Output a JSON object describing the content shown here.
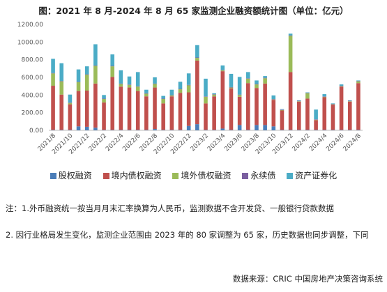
{
  "chart_data": {
    "type": "bar",
    "stacked": true,
    "title": "图：2021 年 8 月-2024 年 8 月 65 家监测企业融资额统计图（单位：亿元）",
    "xlabel": "",
    "ylabel": "",
    "ylim": [
      0,
      1200
    ],
    "yticks": [
      "0.00",
      "200.00",
      "400.00",
      "600.00",
      "800.00",
      "1000.00",
      "1200.00"
    ],
    "grid": false,
    "legend_position": "bottom",
    "categories": [
      "2021/8",
      "2021/9",
      "2021/10",
      "2021/11",
      "2021/12",
      "2022/1",
      "2022/2",
      "2022/3",
      "2022/4",
      "2022/5",
      "2022/6",
      "2022/7",
      "2022/8",
      "2022/9",
      "2022/10",
      "2022/11",
      "2022/12",
      "2023/1",
      "2023/2",
      "2023/3",
      "2023/4",
      "2023/5",
      "2023/6",
      "2023/7",
      "2023/8",
      "2023/9",
      "2023/10",
      "2023/11",
      "2023/12",
      "2024/1",
      "2024/2",
      "2024/3",
      "2024/4",
      "2024/5",
      "2024/6",
      "2024/7",
      "2024/8"
    ],
    "xtick_labels": [
      "2021/8",
      "2021/10",
      "2021/12",
      "2022/2",
      "2022/4",
      "2022/6",
      "2022/8",
      "2022/10",
      "2022/12",
      "2023/2",
      "2023/4",
      "2023/6",
      "2023/8",
      "2023/10",
      "2023/12",
      "2024/2",
      "2024/4",
      "2024/6",
      "2024/8"
    ],
    "series": [
      {
        "name": "股权融资",
        "color": "#4a7db8",
        "values": [
          5,
          5,
          5,
          45,
          40,
          30,
          5,
          5,
          5,
          5,
          5,
          5,
          15,
          5,
          5,
          5,
          50,
          70,
          5,
          5,
          20,
          5,
          60,
          5,
          60,
          60,
          45,
          5,
          5,
          5,
          5,
          5,
          5,
          5,
          5,
          5,
          5
        ]
      },
      {
        "name": "境内债权融资",
        "color": "#c0504d",
        "values": [
          500,
          400,
          290,
          400,
          410,
          500,
          310,
          600,
          490,
          480,
          440,
          380,
          470,
          300,
          380,
          420,
          380,
          720,
          300,
          380,
          650,
          470,
          320,
          530,
          420,
          470,
          300,
          220,
          655,
          320,
          355,
          110,
          370,
          285,
          490,
          320,
          530
        ]
      },
      {
        "name": "境外债权融资",
        "color": "#9bbb59",
        "values": [
          140,
          150,
          15,
          100,
          180,
          200,
          40,
          120,
          30,
          30,
          50,
          30,
          40,
          50,
          10,
          40,
          80,
          30,
          75,
          20,
          10,
          10,
          20,
          50,
          40,
          60,
          5,
          5,
          410,
          5,
          60,
          5,
          5,
          5,
          5,
          5,
          20
        ]
      },
      {
        "name": "永续债",
        "color": "#7b5fa0",
        "values": [
          5,
          5,
          5,
          5,
          5,
          5,
          5,
          5,
          5,
          5,
          5,
          5,
          5,
          5,
          5,
          5,
          5,
          5,
          5,
          5,
          5,
          5,
          5,
          5,
          5,
          5,
          5,
          5,
          5,
          5,
          5,
          5,
          5,
          5,
          5,
          5,
          5
        ]
      },
      {
        "name": "资产证券化",
        "color": "#4bacc6",
        "values": [
          160,
          200,
          90,
          140,
          90,
          240,
          40,
          130,
          150,
          90,
          160,
          40,
          70,
          30,
          60,
          80,
          130,
          140,
          200,
          10,
          50,
          150,
          200,
          70,
          40,
          20,
          40,
          5,
          20,
          5,
          5,
          110,
          25,
          5,
          15,
          5,
          5
        ]
      }
    ]
  },
  "notes": [
    "注：1.外币融资统一按当月月末汇率换算为人民币，监测数据不含开发贷、一般银行贷款数据",
    "2. 因行业格局发生变化，监测企业范围由 2023 年的 80 家调整为 65 家，历史数据也同步调整，下同"
  ],
  "source": "数据来源：CRIC 中国房地产决策咨询系统"
}
